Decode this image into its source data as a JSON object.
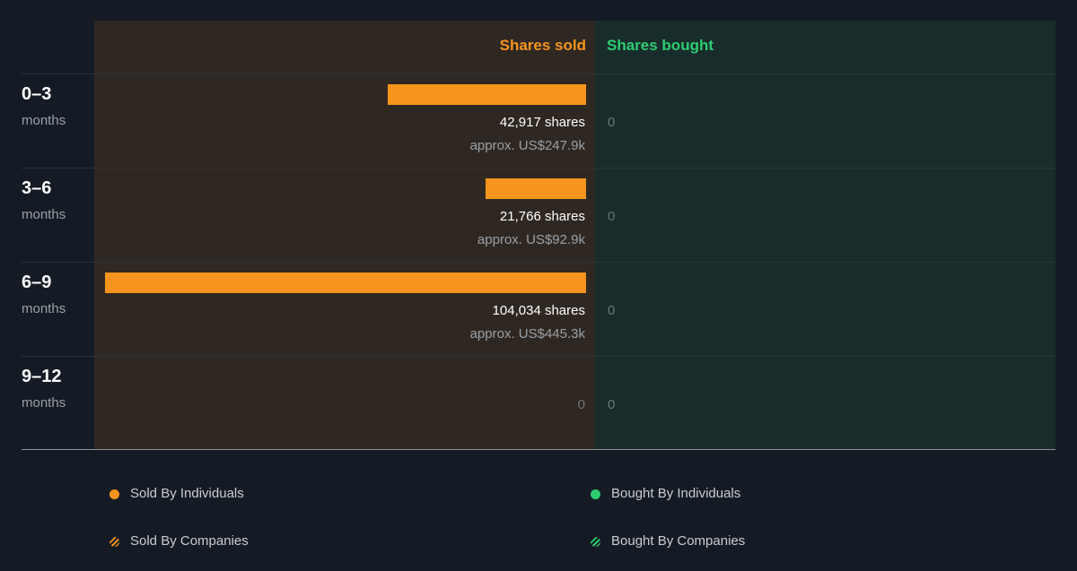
{
  "chart_data": {
    "type": "bar",
    "orientation": "horizontal-diverging",
    "headers": {
      "sold": "Shares sold",
      "bought": "Shares bought"
    },
    "rows": [
      {
        "period": "0–3",
        "unit": "months",
        "sold_shares": 42917,
        "sold_label": "42,917 shares",
        "sold_value": "approx. US$247.9k",
        "bought_label": "0"
      },
      {
        "period": "3–6",
        "unit": "months",
        "sold_shares": 21766,
        "sold_label": "21,766 shares",
        "sold_value": "approx. US$92.9k",
        "bought_label": "0"
      },
      {
        "period": "6–9",
        "unit": "months",
        "sold_shares": 104034,
        "sold_label": "104,034 shares",
        "sold_value": "approx. US$445.3k",
        "bought_label": "0"
      },
      {
        "period": "9–12",
        "unit": "months",
        "sold_shares": 0,
        "sold_label": "0",
        "sold_value": "",
        "bought_label": "0"
      }
    ],
    "legend": [
      {
        "label": "Sold By Individuals",
        "color": "#f7941d",
        "pattern": "solid"
      },
      {
        "label": "Bought By Individuals",
        "color": "#2ecc71",
        "pattern": "solid"
      },
      {
        "label": "Sold By Companies",
        "color": "#f7941d",
        "pattern": "striped"
      },
      {
        "label": "Bought By Companies",
        "color": "#2ecc71",
        "pattern": "striped"
      }
    ],
    "colors": {
      "sold": "#f7941d",
      "bought": "#2ecc71"
    }
  }
}
